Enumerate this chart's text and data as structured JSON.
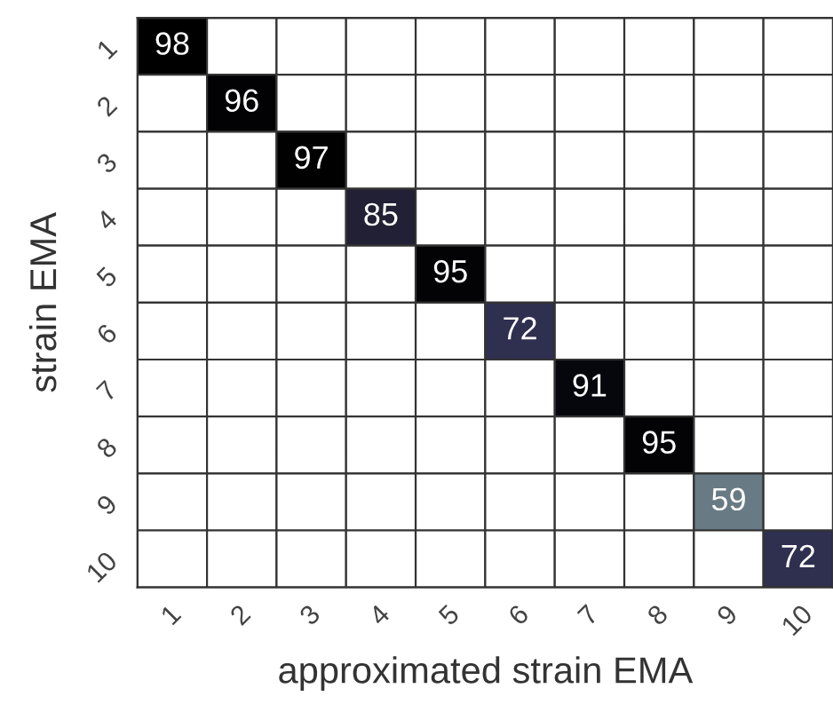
{
  "chart_data": {
    "type": "heatmap",
    "xlabel": "approximated strain EMA",
    "ylabel": "strain EMA",
    "categories": [
      "1",
      "2",
      "3",
      "4",
      "5",
      "6",
      "7",
      "8",
      "9",
      "10"
    ],
    "data_labels": true,
    "y_categories": [
      "1",
      "2",
      "3",
      "4",
      "5",
      "6",
      "7",
      "8",
      "9",
      "10"
    ],
    "cells": [
      [
        98,
        null,
        null,
        null,
        null,
        null,
        null,
        null,
        null,
        null
      ],
      [
        null,
        96,
        null,
        null,
        null,
        null,
        null,
        null,
        null,
        null
      ],
      [
        null,
        null,
        97,
        null,
        null,
        null,
        null,
        null,
        null,
        null
      ],
      [
        null,
        null,
        null,
        85,
        null,
        null,
        null,
        null,
        null,
        null
      ],
      [
        null,
        null,
        null,
        null,
        95,
        null,
        null,
        null,
        null,
        null
      ],
      [
        null,
        null,
        null,
        null,
        null,
        72,
        null,
        null,
        null,
        null
      ],
      [
        null,
        null,
        null,
        null,
        null,
        null,
        91,
        null,
        null,
        null
      ],
      [
        null,
        null,
        null,
        null,
        null,
        null,
        null,
        95,
        null,
        null
      ],
      [
        null,
        null,
        null,
        null,
        null,
        null,
        null,
        null,
        59,
        null
      ],
      [
        null,
        null,
        null,
        null,
        null,
        null,
        null,
        null,
        null,
        72
      ]
    ]
  }
}
